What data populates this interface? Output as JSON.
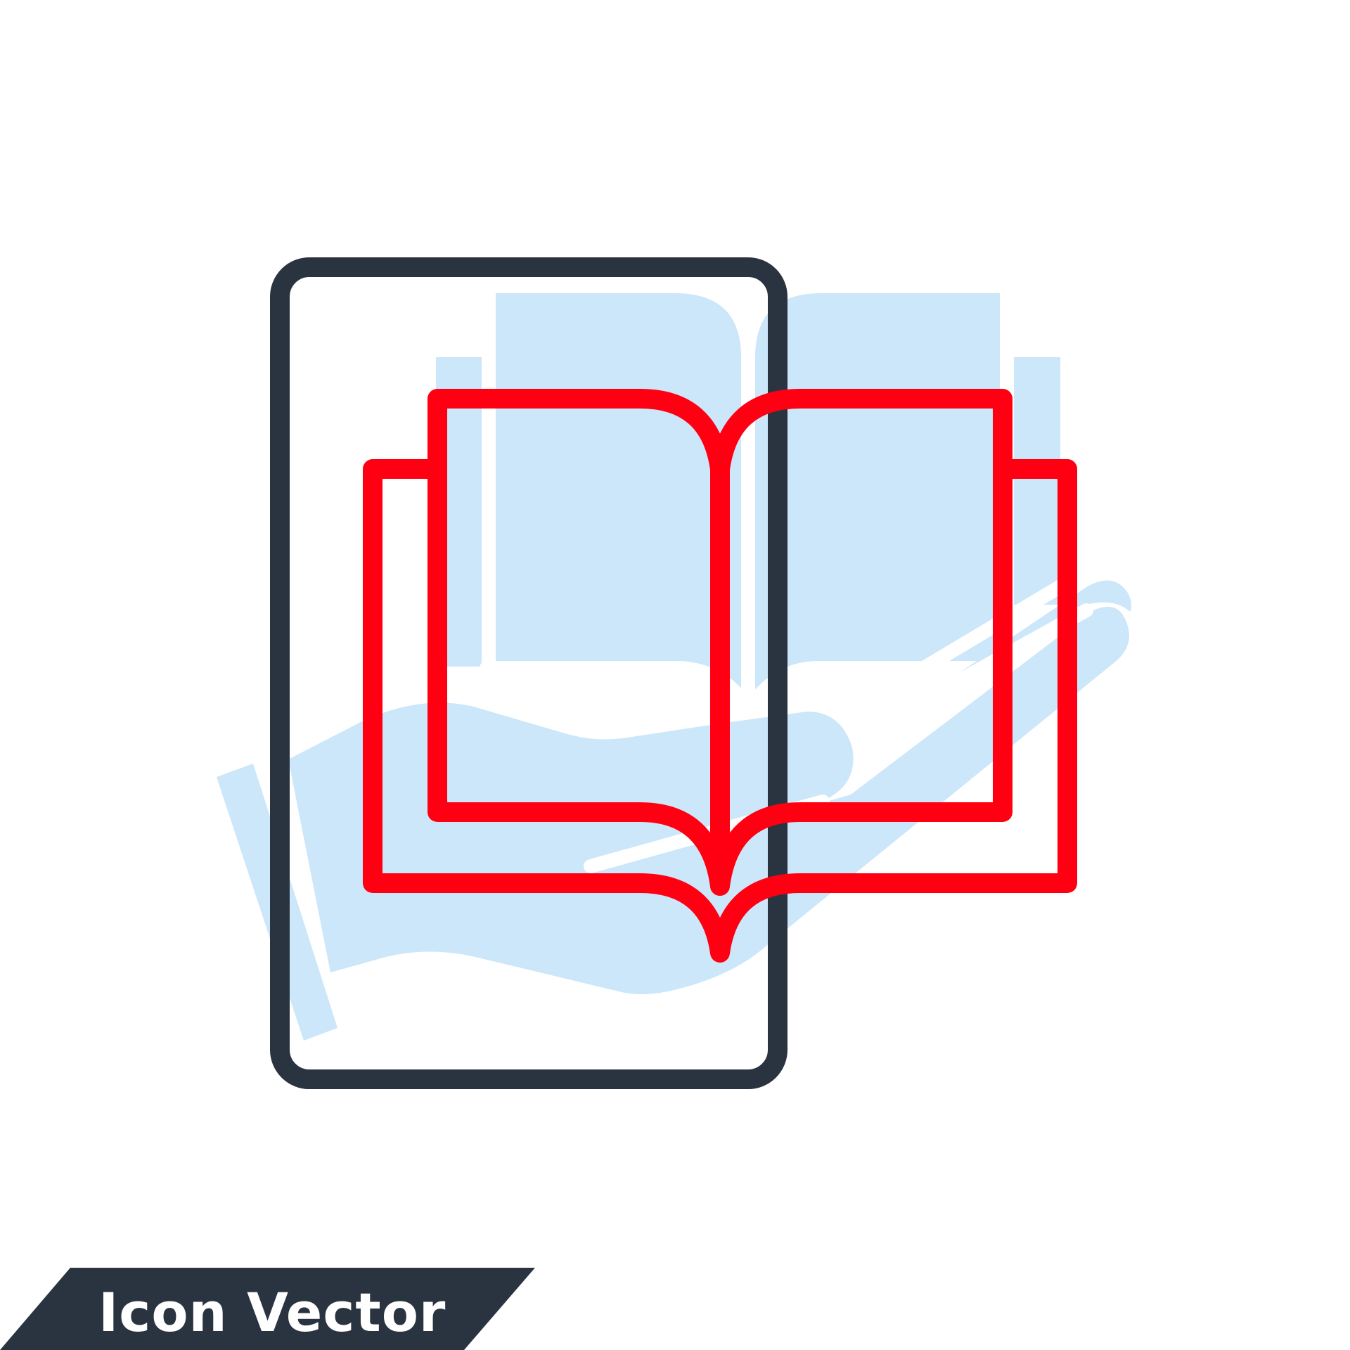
{
  "banner": {
    "label": "Icon Vector"
  },
  "icon": {
    "name": "mobile-ebook-icon",
    "elements": [
      "smartphone-outline",
      "open-book",
      "hand",
      "book-silhouette"
    ]
  },
  "colors": {
    "background": "#ffffff",
    "phone_outline": "#2a3440",
    "book_outline": "#ff0013",
    "light_fill": "#cce6fa",
    "banner": "#2a3440",
    "banner_text": "#ffffff"
  }
}
